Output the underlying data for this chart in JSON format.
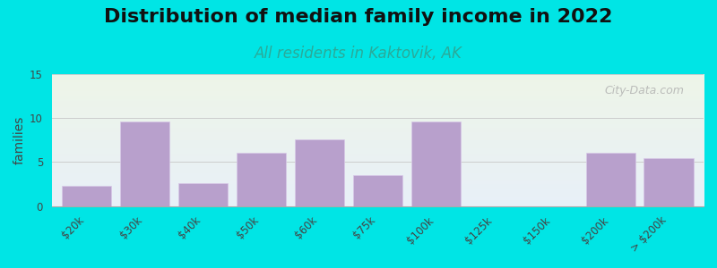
{
  "title": "Distribution of median family income in 2022",
  "subtitle": "All residents in Kaktovik, AK",
  "ylabel": "families",
  "tick_labels": [
    "$20k",
    "$30k",
    "$40k",
    "$50k",
    "$60k",
    "$75k",
    "$100k",
    "$125k",
    "$150k",
    "$200k",
    "> $200k"
  ],
  "bar_positions": [
    0,
    1,
    2,
    3,
    4,
    5,
    6,
    7,
    9,
    10
  ],
  "bar_values": [
    2.3,
    9.6,
    2.6,
    6.1,
    7.6,
    3.5,
    9.6,
    0.0,
    6.1,
    5.4
  ],
  "tick_positions": [
    0,
    1,
    2,
    3,
    4,
    5,
    6,
    7,
    8,
    9,
    10
  ],
  "bar_color": "#b8a0cc",
  "bar_edgecolor": "#d8c8e8",
  "background_color": "#00e5e5",
  "plot_bg_top": "#eef5e8",
  "plot_bg_bottom": "#e8f0f8",
  "title_fontsize": 16,
  "subtitle_fontsize": 12,
  "subtitle_color": "#2aaa99",
  "ylabel_fontsize": 10,
  "tick_fontsize": 8.5,
  "ylim": [
    0,
    15
  ],
  "yticks": [
    0,
    5,
    10,
    15
  ],
  "watermark": "City-Data.com",
  "grid_color": "#cccccc"
}
